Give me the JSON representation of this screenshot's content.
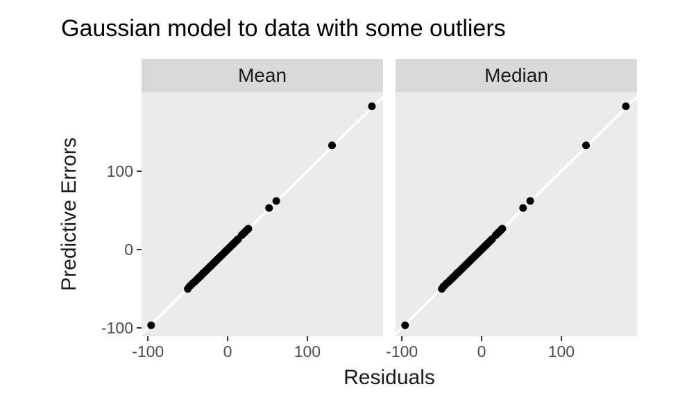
{
  "chart_data": {
    "type": "scatter",
    "title": "Gaussian model to data with some outliers",
    "xlabel": "Residuals",
    "ylabel": "Predictive Errors",
    "facets": [
      "Mean",
      "Median"
    ],
    "x_ticks": [
      -100,
      0,
      100
    ],
    "y_ticks": [
      -100,
      0,
      100
    ],
    "x_range": [
      -108,
      195
    ],
    "y_range": [
      -111,
      201
    ],
    "grid": "off",
    "legend": "none",
    "identity_line": true,
    "points_shared_across_facets": true,
    "points": [
      [
        -96,
        -97
      ],
      [
        -50,
        -50.5
      ],
      [
        -48,
        -47.5
      ],
      [
        -46.2,
        -46
      ],
      [
        -44,
        -43.5
      ],
      [
        -41.5,
        -41.5
      ],
      [
        -40.3,
        -40.3
      ],
      [
        -39.1,
        -39.1
      ],
      [
        -37.9,
        -37.9
      ],
      [
        -36.7,
        -36.7
      ],
      [
        -35.5,
        -35.5
      ],
      [
        -34.3,
        -34.3
      ],
      [
        -33.1,
        -33.1
      ],
      [
        -31.9,
        -31.9
      ],
      [
        -30.7,
        -30.2
      ],
      [
        -29.5,
        -29.5
      ],
      [
        -28.3,
        -28.3
      ],
      [
        -27.1,
        -27.1
      ],
      [
        -25.9,
        -25.9
      ],
      [
        -24.7,
        -24.7
      ],
      [
        -23.5,
        -23.5
      ],
      [
        -22.3,
        -22.3
      ],
      [
        -21.1,
        -21.1
      ],
      [
        -19.9,
        -19.9
      ],
      [
        -18.7,
        -18.7
      ],
      [
        -17.5,
        -17.5
      ],
      [
        -16.3,
        -16.3
      ],
      [
        -15.1,
        -15.1
      ],
      [
        -13.9,
        -13.9
      ],
      [
        -12.7,
        -12.7
      ],
      [
        -11.5,
        -11.5
      ],
      [
        -10.3,
        -10.3
      ],
      [
        -9.1,
        -9.1
      ],
      [
        -7.9,
        -7.9
      ],
      [
        -6.7,
        -6.7
      ],
      [
        -5.5,
        -5.5
      ],
      [
        -4.3,
        -4.3
      ],
      [
        -3.1,
        -3.1
      ],
      [
        -1.9,
        -1.9
      ],
      [
        -0.7,
        -0.7
      ],
      [
        0.5,
        0.5
      ],
      [
        1.7,
        1.7
      ],
      [
        2.9,
        2.9
      ],
      [
        4.1,
        4.1
      ],
      [
        5.3,
        5.3
      ],
      [
        6.5,
        6.5
      ],
      [
        7.7,
        7.7
      ],
      [
        8.9,
        8.9
      ],
      [
        10.1,
        10.1
      ],
      [
        11.3,
        11.3
      ],
      [
        12.5,
        12.5
      ],
      [
        13.3,
        13.3
      ],
      [
        17.5,
        18
      ],
      [
        18.8,
        19.3
      ],
      [
        20.1,
        20.6
      ],
      [
        21.4,
        21.9
      ],
      [
        22.7,
        23.2
      ],
      [
        24,
        24.5
      ],
      [
        25.2,
        25.7
      ],
      [
        26,
        26.5
      ],
      [
        52,
        53
      ],
      [
        61,
        62
      ],
      [
        131,
        133
      ],
      [
        181,
        183
      ]
    ],
    "colors": {
      "background": "#FFFFFF",
      "panel_bg": "#EBEBEB",
      "strip_bg": "#D9D9D9",
      "point": "#000000",
      "identity_line": "#FFFFFF",
      "tick_mark": "#333333",
      "tick_label": "#4D4D4D"
    }
  }
}
